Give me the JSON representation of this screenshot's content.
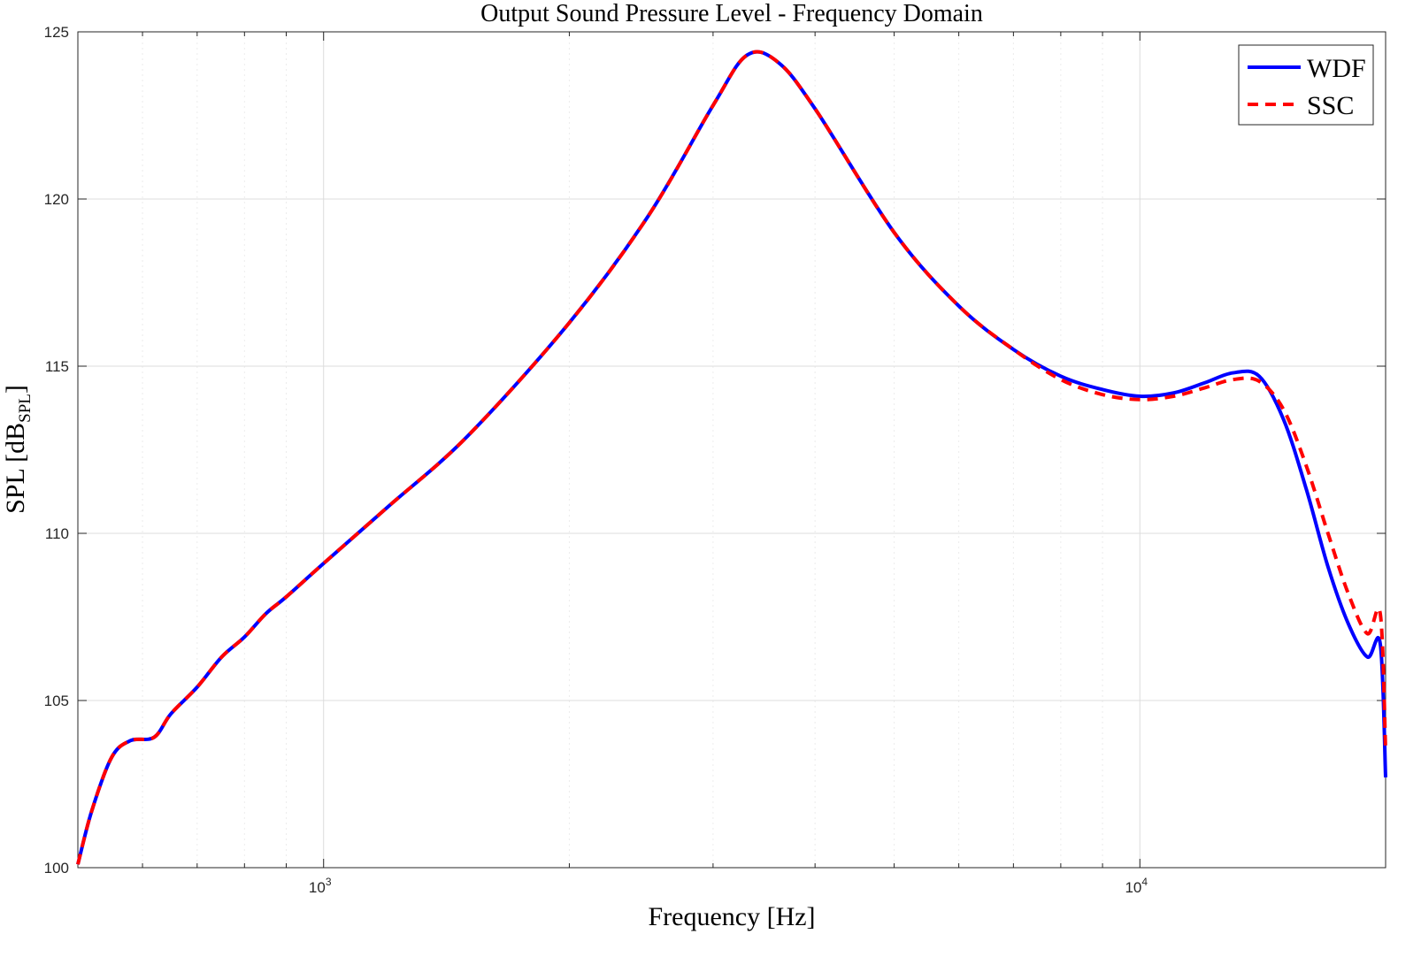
{
  "chart_data": {
    "type": "line",
    "title": "Output Sound Pressure Level - Frequency Domain",
    "xlabel": "Frequency [Hz]",
    "ylabel_main": "SPL [dB",
    "ylabel_sub": "SPL",
    "ylabel_close": "]",
    "x_scale": "log",
    "xlim": [
      500,
      20000
    ],
    "ylim": [
      100,
      125
    ],
    "grid": true,
    "legend_position": "top-right",
    "x_ticks": [
      {
        "value": 1000,
        "base": "10",
        "exp": "3"
      },
      {
        "value": 10000,
        "base": "10",
        "exp": "4"
      }
    ],
    "y_ticks": [
      100,
      105,
      110,
      115,
      120,
      125
    ],
    "series": [
      {
        "name": "WDF",
        "color": "#0000ff",
        "style": "solid",
        "x": [
          500,
          520,
          550,
          580,
          620,
          650,
          700,
          750,
          800,
          850,
          900,
          1000,
          1200,
          1500,
          2000,
          2500,
          3000,
          3300,
          3600,
          4000,
          5000,
          6000,
          7000,
          8000,
          9000,
          10000,
          11000,
          12000,
          13000,
          14000,
          15000,
          16000,
          17000,
          18000,
          19000,
          19700,
          20000
        ],
        "y": [
          100.1,
          101.7,
          103.3,
          103.8,
          103.9,
          104.6,
          105.4,
          106.3,
          106.9,
          107.6,
          108.1,
          109.1,
          110.8,
          112.9,
          116.3,
          119.5,
          122.8,
          124.3,
          124.1,
          122.7,
          119.0,
          116.8,
          115.5,
          114.7,
          114.3,
          114.1,
          114.2,
          114.5,
          114.8,
          114.7,
          113.4,
          111.3,
          109.0,
          107.3,
          106.3,
          106.7,
          102.7
        ]
      },
      {
        "name": "SSC",
        "color": "#ff0000",
        "style": "dashed",
        "x": [
          500,
          520,
          550,
          580,
          620,
          650,
          700,
          750,
          800,
          850,
          900,
          1000,
          1200,
          1500,
          2000,
          2500,
          3000,
          3300,
          3600,
          4000,
          5000,
          6000,
          7000,
          8000,
          9000,
          10000,
          11000,
          12000,
          13000,
          14000,
          15000,
          16000,
          17000,
          18000,
          19000,
          19700,
          20000
        ],
        "y": [
          100.1,
          101.7,
          103.3,
          103.8,
          103.9,
          104.6,
          105.4,
          106.3,
          106.9,
          107.6,
          108.1,
          109.1,
          110.8,
          112.9,
          116.3,
          119.5,
          122.8,
          124.3,
          124.1,
          122.7,
          119.0,
          116.8,
          115.5,
          114.6,
          114.15,
          114.0,
          114.1,
          114.35,
          114.6,
          114.55,
          113.7,
          112.0,
          110.0,
          108.2,
          107.0,
          107.6,
          103.5
        ]
      }
    ]
  }
}
